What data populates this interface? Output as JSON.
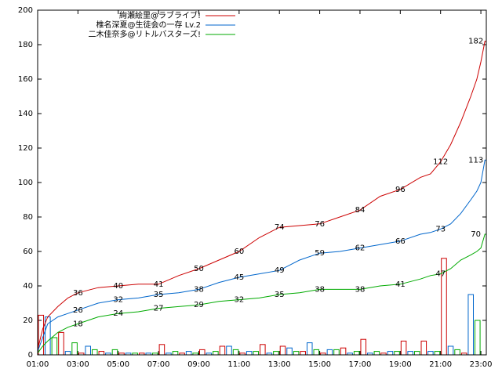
{
  "chart_data": {
    "type": "line",
    "xlim": [
      1,
      23.27
    ],
    "ylim": [
      0,
      200
    ],
    "xticks": [
      {
        "value": 1,
        "label": "01:00"
      },
      {
        "value": 3,
        "label": "03:00"
      },
      {
        "value": 5,
        "label": "05:00"
      },
      {
        "value": 7,
        "label": "07:00"
      },
      {
        "value": 9,
        "label": "09:00"
      },
      {
        "value": 11,
        "label": "11:00"
      },
      {
        "value": 13,
        "label": "13:00"
      },
      {
        "value": 15,
        "label": "15:00"
      },
      {
        "value": 17,
        "label": "17:00"
      },
      {
        "value": 19,
        "label": "19:00"
      },
      {
        "value": 21,
        "label": "21:00"
      },
      {
        "value": 23,
        "label": "23:00"
      }
    ],
    "yticks": [
      0,
      20,
      40,
      60,
      80,
      100,
      120,
      140,
      160,
      180,
      200
    ],
    "legend": "top-left",
    "series": [
      {
        "name": "絢瀬絵里@ラブライブ!",
        "color": "#cc0000",
        "x": [
          1,
          1.25,
          1.5,
          2,
          2.5,
          3,
          4,
          5,
          6,
          7,
          8,
          9,
          10,
          11,
          12,
          13,
          14,
          15,
          16,
          17,
          18,
          19,
          20,
          20.5,
          21,
          21.5,
          22,
          22.5,
          22.8,
          23,
          23.2,
          23.27
        ],
        "values": [
          3,
          15,
          22,
          28,
          33,
          36,
          39,
          40,
          41,
          41,
          46,
          50,
          55,
          60,
          68,
          74,
          75,
          76,
          80,
          84,
          92,
          96,
          103,
          105,
          112,
          122,
          135,
          150,
          160,
          170,
          182,
          182
        ],
        "label_x": [
          3,
          5,
          7,
          9,
          11,
          13,
          15,
          17,
          19,
          21,
          22.75
        ],
        "label_values": [
          36,
          40,
          41,
          50,
          60,
          74,
          76,
          84,
          96,
          112,
          182
        ],
        "bar_x": [
          1,
          2,
          3,
          4,
          5,
          6,
          7,
          8,
          9,
          10,
          11,
          12,
          13,
          14,
          15,
          16,
          17,
          18,
          19,
          20,
          21,
          22
        ],
        "bars": [
          23,
          13,
          1,
          2,
          1,
          1,
          6,
          1,
          3,
          5,
          1,
          6,
          5,
          2,
          1,
          4,
          9,
          1,
          8,
          8,
          56,
          1
        ]
      },
      {
        "name": "椎名深夏@生徒会の一存 Lv.2",
        "color": "#0066cc",
        "x": [
          1,
          1.25,
          1.5,
          2,
          2.5,
          3,
          4,
          5,
          6,
          7,
          8,
          9,
          10,
          11,
          12,
          13,
          14,
          15,
          16,
          17,
          18,
          19,
          20,
          20.5,
          21,
          21.5,
          22,
          22.5,
          22.8,
          23,
          23.2,
          23.27
        ],
        "values": [
          2,
          10,
          18,
          22,
          24,
          26,
          30,
          32,
          33,
          35,
          36,
          38,
          42,
          45,
          47,
          49,
          55,
          59,
          60,
          62,
          64,
          66,
          70,
          71,
          73,
          76,
          82,
          90,
          95,
          100,
          113,
          113
        ],
        "label_x": [
          3,
          5,
          7,
          9,
          11,
          13,
          15,
          17,
          19,
          21,
          22.75
        ],
        "label_values": [
          26,
          32,
          35,
          38,
          45,
          49,
          59,
          62,
          66,
          73,
          113
        ],
        "bar_x": [
          1,
          2,
          3,
          4,
          5,
          6,
          7,
          8,
          9,
          10,
          11,
          12,
          13,
          14,
          15,
          16,
          17,
          18,
          19,
          20,
          21,
          22
        ],
        "bars": [
          22,
          2,
          5,
          1,
          1,
          1,
          1,
          2,
          1,
          5,
          2,
          1,
          4,
          7,
          3,
          1,
          1,
          2,
          2,
          2,
          5,
          35
        ]
      },
      {
        "name": "二木佳奈多@リトルバスターズ!",
        "color": "#00aa00",
        "x": [
          1,
          1.25,
          1.5,
          2,
          2.5,
          3,
          4,
          5,
          6,
          7,
          8,
          9,
          10,
          11,
          12,
          13,
          14,
          15,
          16,
          17,
          18,
          19,
          20,
          20.5,
          21,
          21.5,
          22,
          22.5,
          22.8,
          23,
          23.2,
          23.27
        ],
        "values": [
          1,
          5,
          8,
          13,
          16,
          18,
          22,
          24,
          25,
          27,
          28,
          29,
          31,
          32,
          33,
          35,
          36,
          38,
          38,
          38,
          40,
          41,
          44,
          46,
          47,
          50,
          55,
          58,
          60,
          62,
          70,
          70
        ],
        "label_x": [
          3,
          5,
          7,
          9,
          11,
          13,
          15,
          17,
          19,
          21,
          22.75
        ],
        "label_values": [
          18,
          24,
          27,
          29,
          32,
          35,
          38,
          38,
          41,
          47,
          70
        ],
        "bar_x": [
          1,
          2,
          3,
          4,
          5,
          6,
          7,
          8,
          9,
          10,
          11,
          12,
          13,
          14,
          15,
          16,
          17,
          18,
          19,
          20,
          21,
          22
        ],
        "bars": [
          10,
          7,
          3,
          3,
          1,
          1,
          2,
          1,
          2,
          3,
          2,
          2,
          2,
          3,
          3,
          2,
          2,
          2,
          2,
          2,
          3,
          20
        ]
      }
    ]
  }
}
